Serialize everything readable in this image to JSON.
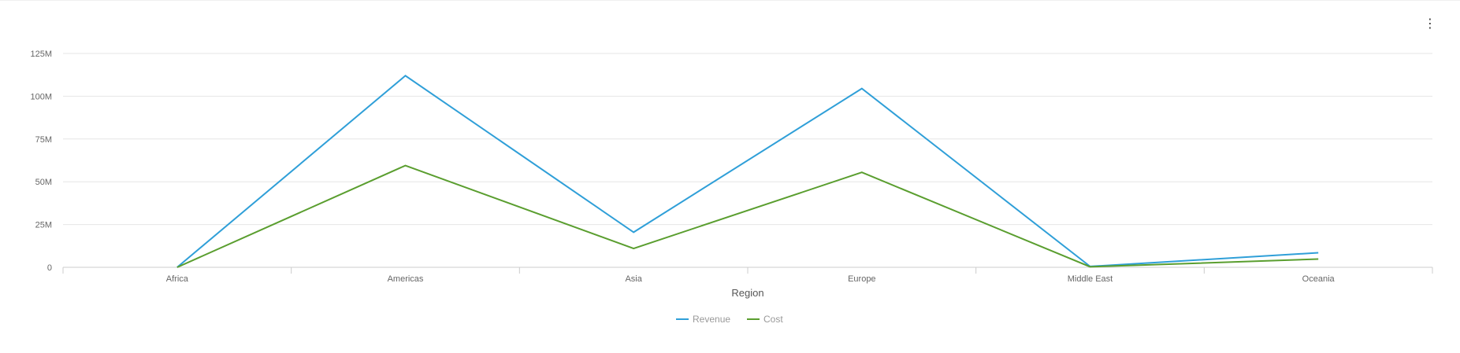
{
  "menu": {
    "icon": "more-vertical-icon",
    "label": "⋮"
  },
  "chart_data": {
    "type": "line",
    "categories": [
      "Africa",
      "Americas",
      "Asia",
      "Europe",
      "Middle East",
      "Oceania"
    ],
    "xlabel": "Region",
    "ylabel": "",
    "ylim": [
      0,
      125000000
    ],
    "yticks": [
      0,
      25000000,
      50000000,
      75000000,
      100000000,
      125000000
    ],
    "ytick_labels": [
      "0",
      "25M",
      "50M",
      "75M",
      "100M",
      "125M"
    ],
    "grid": true,
    "legend_position": "bottom",
    "series": [
      {
        "name": "Revenue",
        "color": "#2f9fd8",
        "values": [
          0,
          112000000,
          20500000,
          104500000,
          500000,
          8500000
        ]
      },
      {
        "name": "Cost",
        "color": "#5a9e2f",
        "values": [
          0,
          59500000,
          11000000,
          55500000,
          300000,
          4800000
        ]
      }
    ]
  }
}
